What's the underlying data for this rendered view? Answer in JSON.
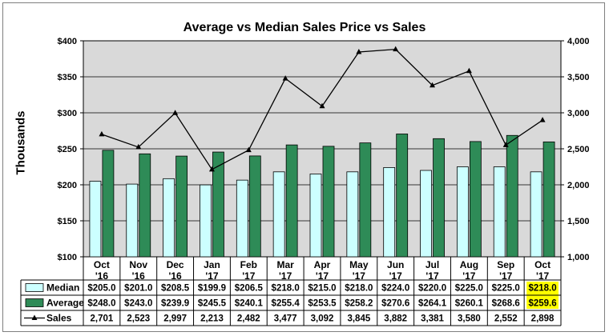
{
  "chart_data": {
    "type": "bar",
    "title": "Average vs Median Sales Price vs Sales",
    "ylabel": "Thousands",
    "y2label": "",
    "ylim": [
      100,
      400
    ],
    "y2lim": [
      1000,
      4000
    ],
    "y_ticks": [
      "$100",
      "$150",
      "$200",
      "$250",
      "$300",
      "$350",
      "$400"
    ],
    "y2_ticks": [
      "1,000",
      "1,500",
      "2,000",
      "2,500",
      "3,000",
      "3,500",
      "4,000"
    ],
    "grid": true,
    "categories": [
      {
        "month": "Oct",
        "year": "'16"
      },
      {
        "month": "Nov",
        "year": "'16"
      },
      {
        "month": "Dec",
        "year": "'16"
      },
      {
        "month": "Jan",
        "year": "'17"
      },
      {
        "month": "Feb",
        "year": "'17"
      },
      {
        "month": "Mar",
        "year": "'17"
      },
      {
        "month": "Apr",
        "year": "'17"
      },
      {
        "month": "May",
        "year": "'17"
      },
      {
        "month": "Jun",
        "year": "'17"
      },
      {
        "month": "Jul",
        "year": "'17"
      },
      {
        "month": "Aug",
        "year": "'17"
      },
      {
        "month": "Sep",
        "year": "'17"
      },
      {
        "month": "Oct",
        "year": "'17"
      }
    ],
    "series": [
      {
        "name": "Median",
        "kind": "bar",
        "axis": "left",
        "color": "#ccffff",
        "values": [
          205.0,
          201.0,
          208.5,
          199.9,
          206.5,
          218.0,
          215.0,
          218.0,
          224.0,
          220.0,
          225.0,
          225.0,
          218.0
        ],
        "labels": [
          "$205.0",
          "$201.0",
          "$208.5",
          "$199.9",
          "$206.5",
          "$218.0",
          "$215.0",
          "$218.0",
          "$224.0",
          "$220.0",
          "$225.0",
          "$225.0",
          "$218.0"
        ]
      },
      {
        "name": "Average",
        "kind": "bar",
        "axis": "left",
        "color": "#2e8b57",
        "values": [
          248.0,
          243.0,
          239.9,
          245.5,
          240.1,
          255.4,
          253.5,
          258.2,
          270.6,
          264.1,
          260.1,
          268.6,
          259.6
        ],
        "labels": [
          "$248.0",
          "$243.0",
          "$239.9",
          "$245.5",
          "$240.1",
          "$255.4",
          "$253.5",
          "$258.2",
          "$270.6",
          "$264.1",
          "$260.1",
          "$268.6",
          "$259.6"
        ]
      },
      {
        "name": "Sales",
        "kind": "line",
        "axis": "right",
        "color": "#000000",
        "values": [
          2701,
          2523,
          2997,
          2213,
          2482,
          3477,
          3092,
          3845,
          3882,
          3381,
          3580,
          2552,
          2898
        ],
        "labels": [
          "2,701",
          "2,523",
          "2,997",
          "2,213",
          "2,482",
          "3,477",
          "3,092",
          "3,845",
          "3,882",
          "3,381",
          "3,580",
          "2,552",
          "2,898"
        ]
      }
    ],
    "highlight_color": "#ffff00",
    "plot_background": "#d9d9d9"
  }
}
